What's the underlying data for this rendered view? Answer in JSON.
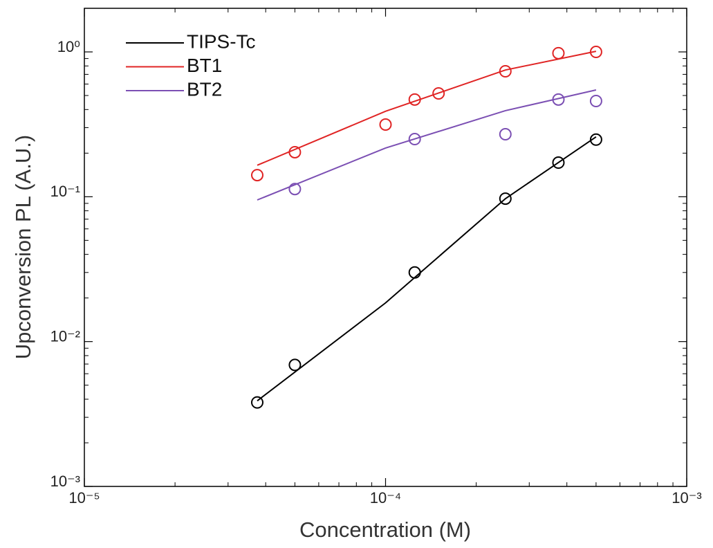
{
  "chart_data": {
    "type": "scatter",
    "x_label": "Concentration (M)",
    "y_label": "Upconversion PL (A.U.)",
    "log_x": true,
    "log_y": true,
    "minor_ticks": true,
    "xlim": [
      1e-05,
      0.001
    ],
    "ylim": [
      0.001,
      2
    ],
    "xticks": [
      {
        "value": 1e-05,
        "label": "10⁻⁵"
      },
      {
        "value": 0.0001,
        "label": "10⁻⁴"
      },
      {
        "value": 0.001,
        "label": "10⁻³"
      }
    ],
    "yticks": [
      {
        "value": 0.001,
        "label": "10⁻³"
      },
      {
        "value": 0.01,
        "label": "10⁻²"
      },
      {
        "value": 0.1,
        "label": "10⁻¹"
      },
      {
        "value": 1,
        "label": "10⁰"
      }
    ],
    "legend": "upper-left",
    "series": [
      {
        "name": "TIPS-Tc",
        "color": "#000000",
        "x": [
          3.75e-05,
          5e-05,
          0.000125,
          0.00025,
          0.000375,
          0.0005
        ],
        "values": [
          0.0038,
          0.0069,
          0.03,
          0.097,
          0.172,
          0.248
        ],
        "fit": {
          "x": [
            3.75e-05,
            0.0001,
            0.00025,
            0.0005
          ],
          "values": [
            0.0039,
            0.0185,
            0.097,
            0.259
          ]
        }
      },
      {
        "name": "BT1",
        "color": "#e02424",
        "x": [
          3.75e-05,
          5e-05,
          0.0001,
          0.000125,
          0.00015,
          0.00025,
          0.000375,
          0.0005
        ],
        "values": [
          0.141,
          0.203,
          0.315,
          0.469,
          0.517,
          0.735,
          0.98,
          1.0
        ],
        "fit": {
          "x": [
            3.75e-05,
            0.0001,
            0.00025,
            0.0005
          ],
          "values": [
            0.165,
            0.389,
            0.75,
            1.01
          ]
        }
      },
      {
        "name": "BT2",
        "color": "#7b4fb3",
        "x": [
          5e-05,
          0.000125,
          0.00025,
          0.000375,
          0.0005
        ],
        "values": [
          0.113,
          0.25,
          0.27,
          0.469,
          0.458
        ],
        "fit": {
          "x": [
            3.75e-05,
            0.0001,
            0.00025,
            0.0005
          ],
          "values": [
            0.095,
            0.217,
            0.393,
            0.546
          ]
        }
      }
    ]
  }
}
